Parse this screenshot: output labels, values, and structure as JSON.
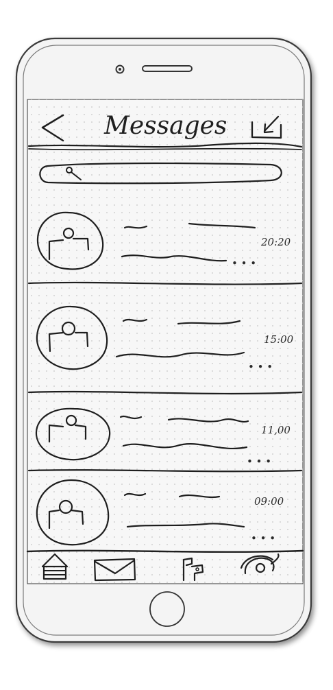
{
  "header": {
    "title": "Messages"
  },
  "messages": [
    {
      "time": "20:20"
    },
    {
      "time": "15:00"
    },
    {
      "time": "11,00"
    },
    {
      "time": "09:00"
    }
  ],
  "tabbar": {
    "items": [
      "home-icon",
      "mail-icon",
      "flag-icon",
      "wifi-icon"
    ]
  },
  "colors": {
    "ink": "#1e1e1e",
    "paper": "#f7f7f7",
    "dot_grid": "#c9c9c9"
  }
}
